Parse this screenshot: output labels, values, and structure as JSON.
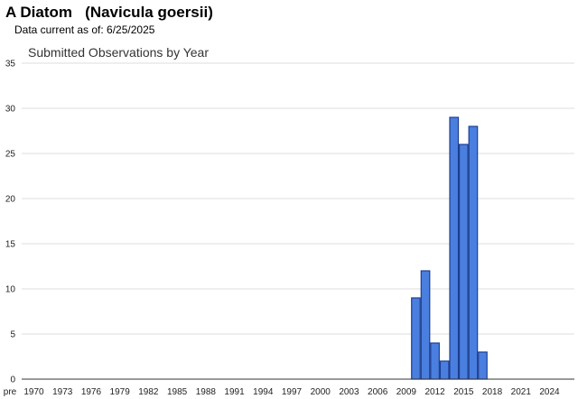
{
  "header": {
    "title": "A Diatom   (Navicula goersii)",
    "data_current": "Data current as of: 6/25/2025"
  },
  "colors": {
    "bar_fill": "#4a7fe0",
    "bar_stroke": "#1d3f8f",
    "grid": "#dddddd"
  },
  "chart_data": {
    "type": "bar",
    "title": "Submitted Observations by Year",
    "xlabel": "",
    "ylabel": "",
    "ylim": [
      0,
      35
    ],
    "yticks": [
      0,
      5,
      10,
      15,
      20,
      25,
      30,
      35
    ],
    "grid": true,
    "legend": "none",
    "x_tick_labels": [
      "pre",
      "1970",
      "1973",
      "1976",
      "1979",
      "1982",
      "1985",
      "1988",
      "1991",
      "1994",
      "1997",
      "2000",
      "2003",
      "2006",
      "2009",
      "2012",
      "2015",
      "2018",
      "2021",
      "2024"
    ],
    "bars": [
      {
        "x": 2010,
        "value": 9
      },
      {
        "x": 2011,
        "value": 12
      },
      {
        "x": 2012,
        "value": 4
      },
      {
        "x": 2013,
        "value": 2
      },
      {
        "x": 2014,
        "value": 29
      },
      {
        "x": 2015,
        "value": 26
      },
      {
        "x": 2016,
        "value": 28
      },
      {
        "x": 2017,
        "value": 3
      }
    ]
  }
}
